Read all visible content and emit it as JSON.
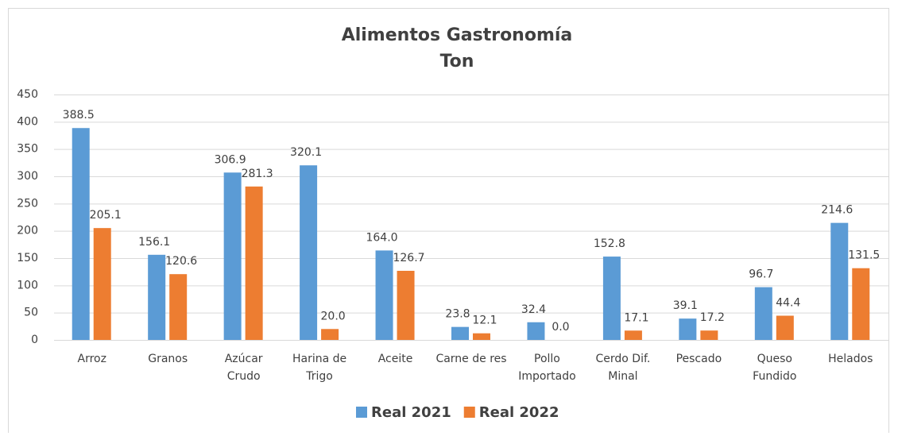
{
  "chart_data": {
    "type": "bar",
    "title": "Alimentos Gastronomía",
    "subtitle": "Ton",
    "categories": [
      "Arroz",
      "Granos",
      "Azúcar\nCrudo",
      "Harina de\nTrigo",
      "Aceite",
      "Carne de res",
      "Pollo\nImportado",
      "Cerdo Dif.\nMinal",
      "Pescado",
      "Queso\nFundido",
      "Helados"
    ],
    "series": [
      {
        "name": "Real 2021",
        "color": "#5b9bd5",
        "values": [
          388.5,
          156.1,
          306.9,
          320.1,
          164,
          23.8,
          32.4,
          152.8,
          39.1,
          96.7,
          214.6
        ],
        "value_labels": [
          "388.5",
          "156.1",
          "306.9",
          "320.1",
          "164.0",
          "23.8",
          "32.4",
          "152.8",
          "39.1",
          "96.7",
          "214.6"
        ]
      },
      {
        "name": "Real 2022",
        "color": "#ed7d31",
        "values": [
          205.1,
          120.6,
          281.3,
          20,
          126.7,
          12.1,
          0,
          17.1,
          17.2,
          44.4,
          131.5
        ],
        "value_labels": [
          "205.1",
          "120.6",
          "281.3",
          "20.0",
          "126.7",
          "12.1",
          "0.0",
          "17.1",
          "17.2",
          "44.4",
          "131.5"
        ]
      }
    ],
    "ylim": [
      0,
      450
    ],
    "yticks": [
      0,
      50,
      100,
      150,
      200,
      250,
      300,
      350,
      400,
      450
    ],
    "grid": true,
    "legend": "bottom"
  }
}
